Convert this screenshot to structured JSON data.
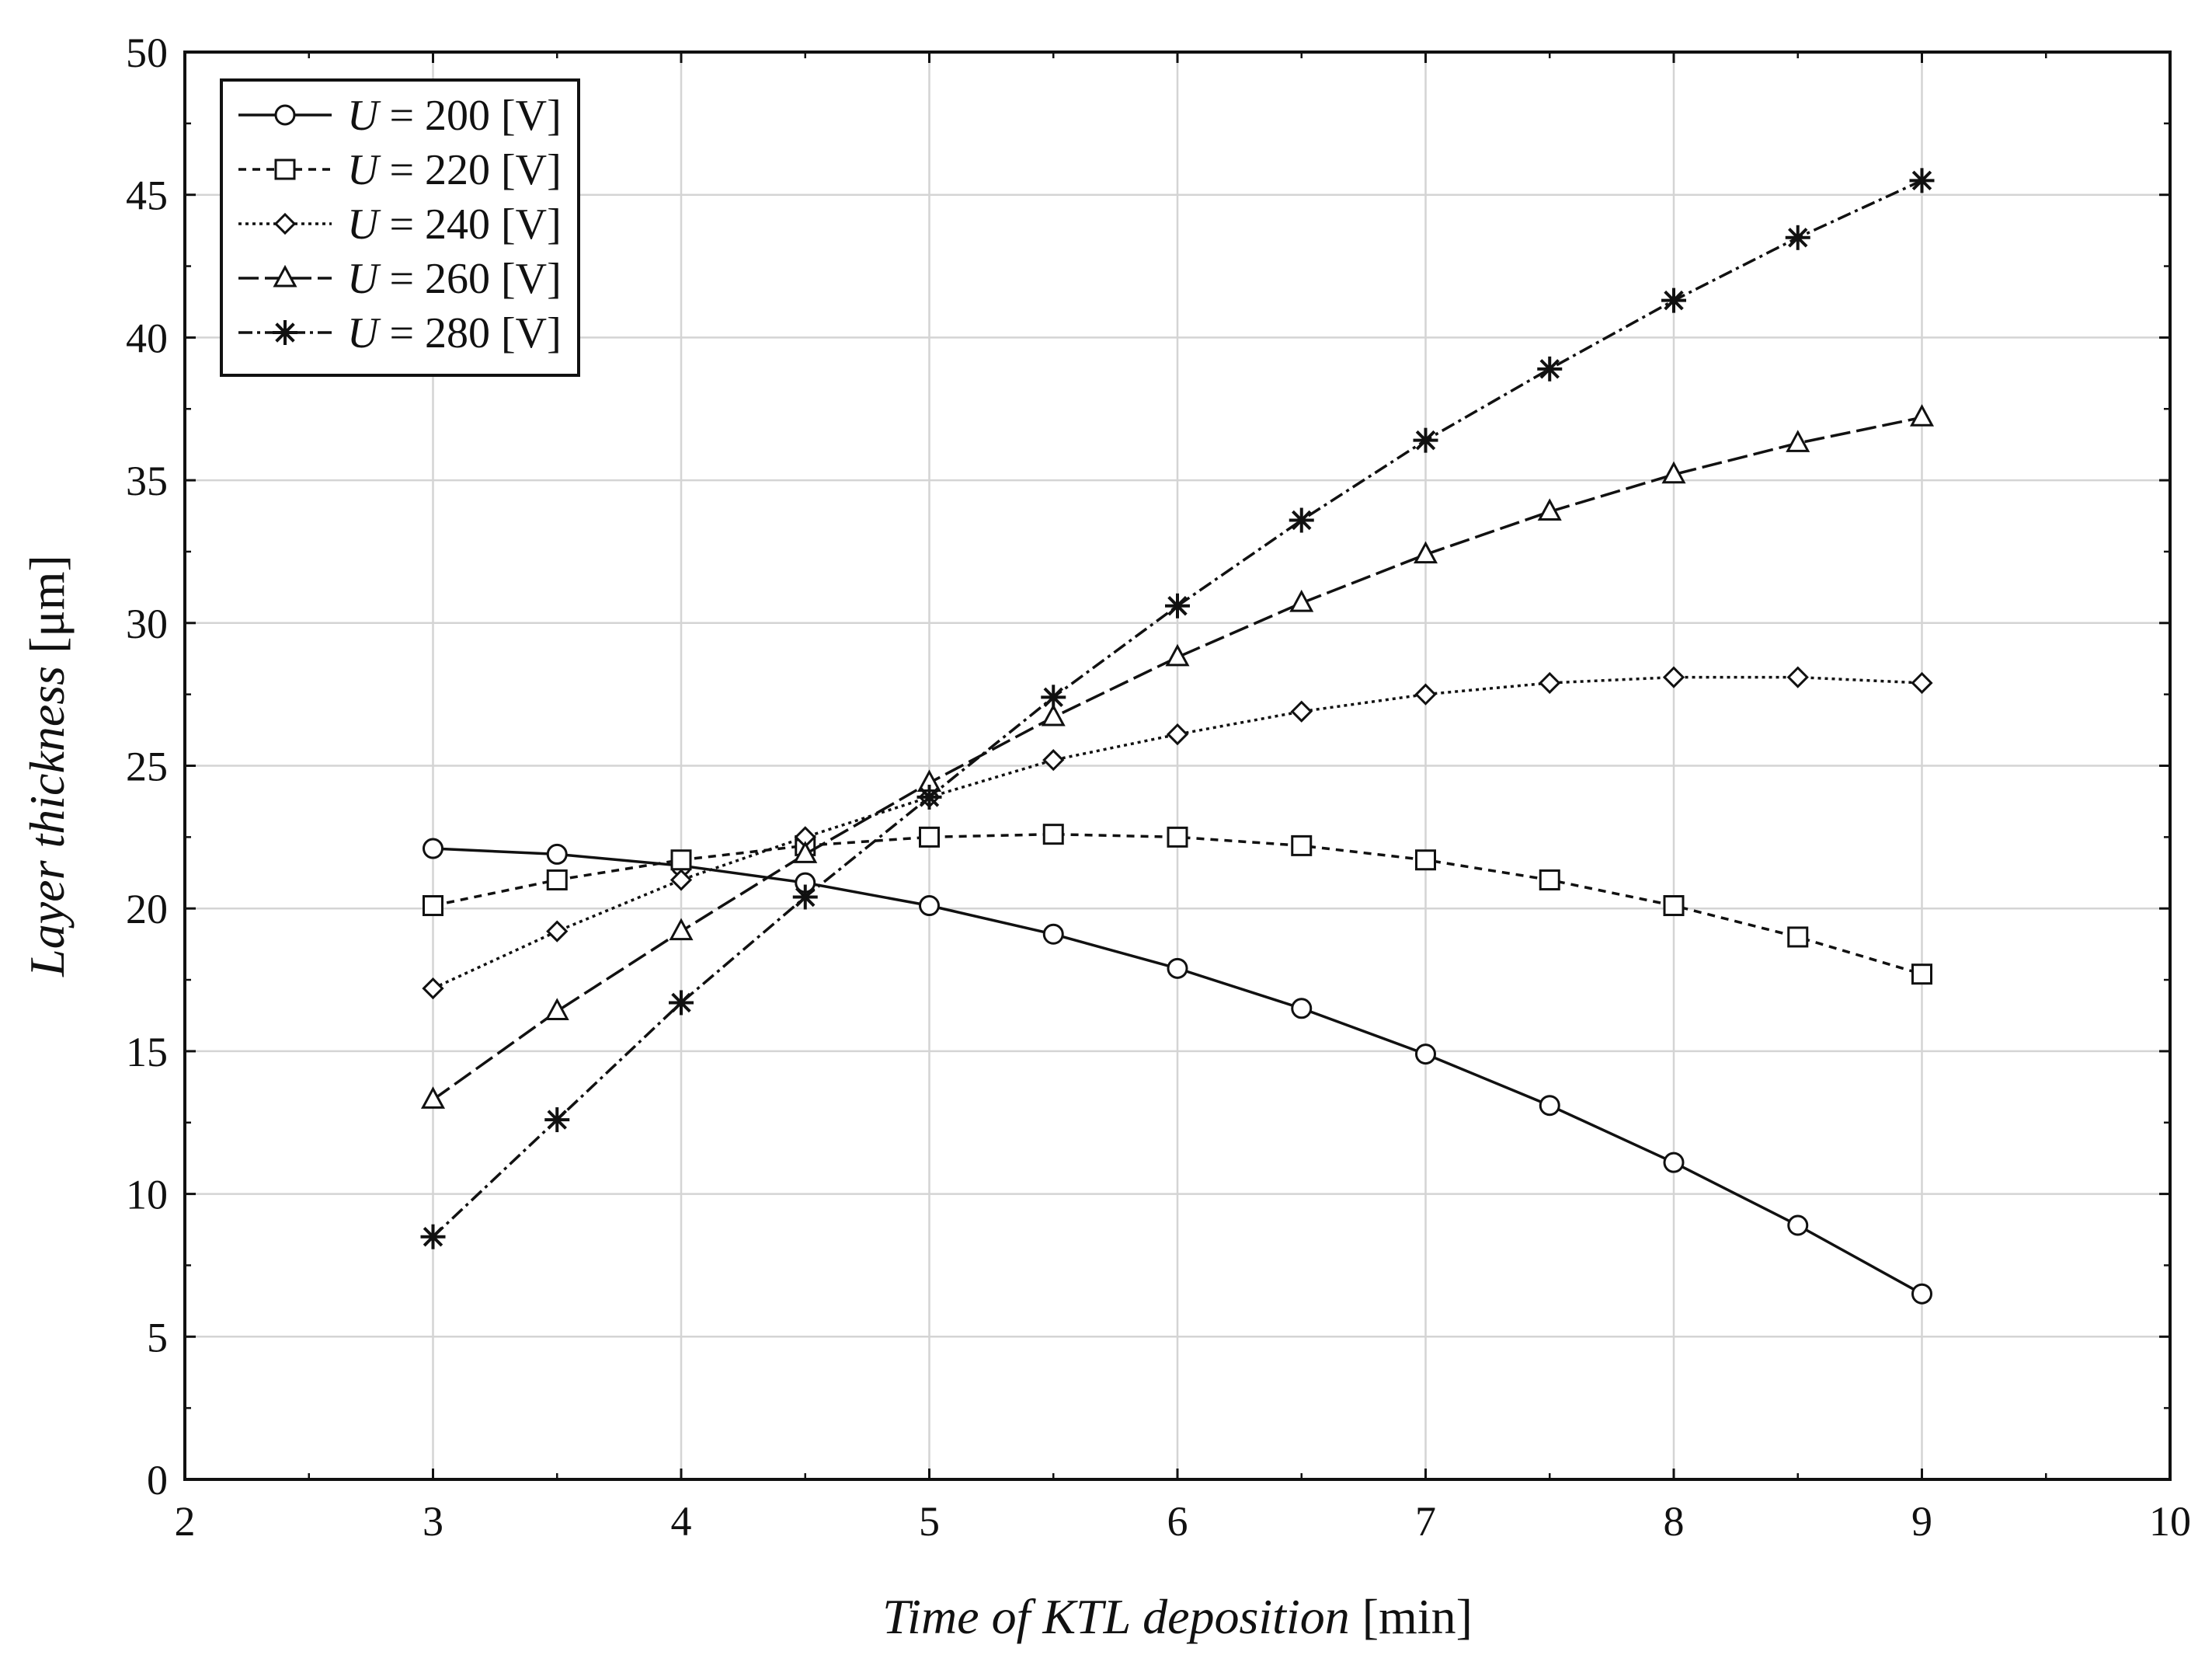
{
  "chart_data": {
    "type": "line",
    "xlabel_italic": "Time of KTL deposition",
    "xlabel_unit": " [min]",
    "ylabel_italic": "Layer thickness",
    "ylabel_unit": " [μm]",
    "xlim": [
      2,
      10
    ],
    "ylim": [
      0,
      50
    ],
    "x_ticks": [
      2,
      3,
      4,
      5,
      6,
      7,
      8,
      9,
      10
    ],
    "y_ticks": [
      0,
      5,
      10,
      15,
      20,
      25,
      30,
      35,
      40,
      45,
      50
    ],
    "grid": true,
    "legend_position": "top-left",
    "x": [
      3,
      3.5,
      4,
      4.5,
      5,
      5.5,
      6,
      6.5,
      7,
      7.5,
      8,
      8.5,
      9
    ],
    "series": [
      {
        "name": "U = 200 [V]",
        "var": "U",
        "rest": " = 200 [V]",
        "marker": "circle",
        "dash": "none",
        "values": [
          22.1,
          21.9,
          21.5,
          20.9,
          20.1,
          19.1,
          17.9,
          16.5,
          14.9,
          13.1,
          11.1,
          8.9,
          6.5
        ]
      },
      {
        "name": "U = 220 [V]",
        "var": "U",
        "rest": " = 220 [V]",
        "marker": "square",
        "dash": "10,8",
        "values": [
          20.1,
          21.0,
          21.7,
          22.2,
          22.5,
          22.6,
          22.5,
          22.2,
          21.7,
          21.0,
          20.1,
          19.0,
          17.7
        ]
      },
      {
        "name": "U = 240 [V]",
        "var": "U",
        "rest": " = 240 [V]",
        "marker": "diamond",
        "dash": "4,5",
        "values": [
          17.2,
          19.2,
          21.0,
          22.5,
          23.9,
          25.2,
          26.1,
          26.9,
          27.5,
          27.9,
          28.1,
          28.1,
          27.9
        ]
      },
      {
        "name": "U = 260 [V]",
        "var": "U",
        "rest": " = 260 [V]",
        "marker": "triangle",
        "dash": "26,8",
        "values": [
          13.3,
          16.4,
          19.2,
          21.9,
          24.4,
          26.7,
          28.8,
          30.7,
          32.4,
          33.9,
          35.2,
          36.3,
          37.2
        ]
      },
      {
        "name": "U = 280 [V]",
        "var": "U",
        "rest": " = 280 [V]",
        "marker": "star",
        "dash": "18,6,4,6",
        "values": [
          8.5,
          12.6,
          16.7,
          20.4,
          23.9,
          27.4,
          30.6,
          33.6,
          36.4,
          38.9,
          41.3,
          43.5,
          45.5
        ]
      }
    ]
  }
}
